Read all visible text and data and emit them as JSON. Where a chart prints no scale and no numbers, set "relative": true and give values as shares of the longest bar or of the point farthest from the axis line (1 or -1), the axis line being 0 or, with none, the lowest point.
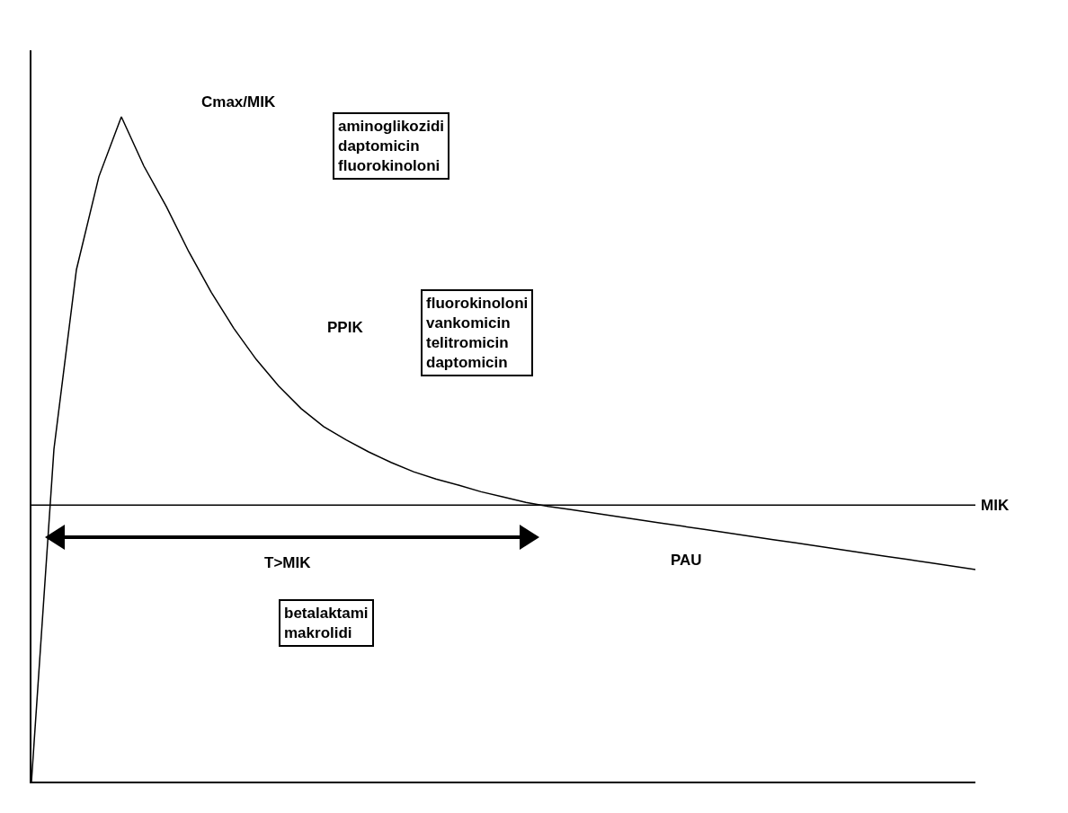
{
  "chart_data": {
    "type": "line",
    "relative": true,
    "categories": [
      null,
      null,
      null,
      null,
      null,
      null,
      null,
      null,
      null,
      null,
      null,
      null,
      null,
      null,
      null,
      null,
      null,
      null,
      null,
      null,
      null,
      null,
      null,
      null,
      null,
      null,
      null,
      null,
      null,
      null,
      null,
      null,
      null,
      null,
      null,
      null,
      null,
      null,
      null,
      null,
      null,
      null,
      null
    ],
    "series": [
      {
        "color": "#000000",
        "values": [
          0,
          0.5,
          0.77,
          0.91,
          1,
          0.926,
          0.865,
          0.797,
          0.736,
          0.682,
          0.635,
          0.595,
          0.561,
          0.534,
          0.514,
          0.496,
          0.48,
          0.466,
          0.455,
          0.446,
          0.436,
          0.428,
          0.42,
          0.414,
          0.409,
          0.404,
          0.399,
          0.394,
          0.389,
          0.384,
          0.379,
          0.374,
          0.369,
          0.364,
          0.359,
          0.354,
          0.349,
          0.344,
          0.339,
          0.334,
          0.329,
          0.324,
          0.319
        ]
      }
    ],
    "ref_lines": [
      {
        "axis": "y",
        "value": 0.416,
        "label": "MIK"
      }
    ],
    "annotations": [
      "Cmax/MIK",
      "aminoglikozidi\ndaptomicin\nfluorokinoloni",
      "PPIK",
      "fluorokinoloni\nvankomicin\ntelitromicin\ndaptomicin",
      "T>MIK",
      "PAU",
      "betalaktami\nmakrolidi"
    ]
  }
}
